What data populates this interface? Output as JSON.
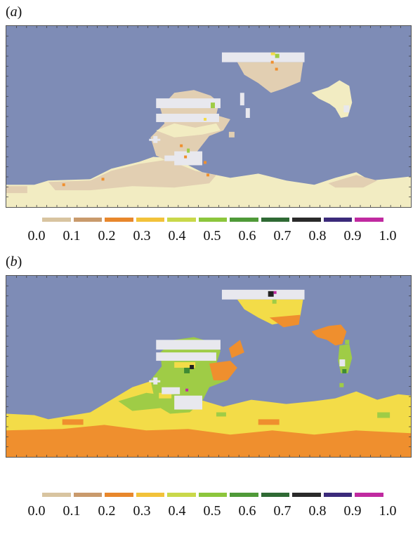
{
  "panels": [
    {
      "label_open": "(",
      "label_letter": "a",
      "label_close": ")",
      "colorbar": {
        "ticks": [
          "0.0",
          "0.1",
          "0.2",
          "0.3",
          "0.4",
          "0.5",
          "0.6",
          "0.7",
          "0.8",
          "0.9",
          "1.0"
        ],
        "colors": [
          "#d8c4a0",
          "#c99a6c",
          "#e8872c",
          "#f2c23a",
          "#c9d84a",
          "#8cc63c",
          "#4f9a38",
          "#2f6a34",
          "#2a2a2a",
          "#3b2a7a",
          "#c02aa0"
        ]
      }
    },
    {
      "label_open": "(",
      "label_letter": "b",
      "label_close": ")",
      "colorbar": {
        "ticks": [
          "0.0",
          "0.1",
          "0.2",
          "0.3",
          "0.4",
          "0.5",
          "0.6",
          "0.7",
          "0.8",
          "0.9",
          "1.0"
        ],
        "colors": [
          "#d8c4a0",
          "#c99a6c",
          "#e8872c",
          "#f2c23a",
          "#c9d84a",
          "#8cc63c",
          "#4f9a38",
          "#2f6a34",
          "#2a2a2a",
          "#3b2a7a",
          "#c02aa0"
        ]
      }
    }
  ],
  "map_colors": {
    "ocean": "#7e8cb6",
    "ice": "#e8e8ee",
    "land_pale": "#f2ecc2",
    "land_tan": "#e2cfb2",
    "orange": "#ef8f2e",
    "yellow": "#f3dc48",
    "green": "#9fcc46",
    "darkgreen": "#3f8a34",
    "black": "#222222",
    "magenta": "#c02aa0"
  }
}
